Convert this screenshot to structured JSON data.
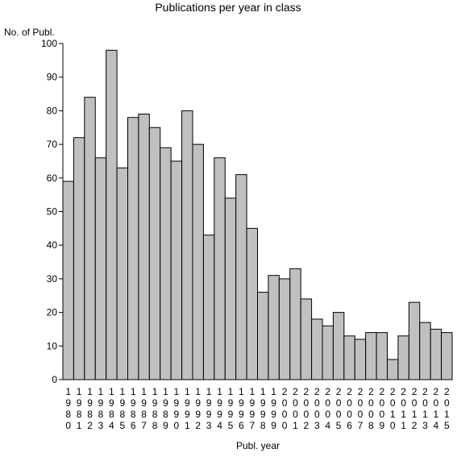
{
  "chart_data": {
    "type": "bar",
    "title": "Publications per year in class",
    "xlabel": "Publ. year",
    "ylabel": "No. of Publ.",
    "ylim": [
      0,
      100
    ],
    "yticks": [
      0,
      10,
      20,
      30,
      40,
      50,
      60,
      70,
      80,
      90,
      100
    ],
    "grid": false,
    "bar_color": "#c0c0c0",
    "edge_color": "#000000",
    "categories": [
      "1980",
      "1981",
      "1982",
      "1983",
      "1984",
      "1985",
      "1986",
      "1987",
      "1988",
      "1989",
      "1990",
      "1991",
      "1992",
      "1993",
      "1994",
      "1995",
      "1996",
      "1997",
      "1998",
      "1999",
      "2000",
      "2001",
      "2002",
      "2003",
      "2004",
      "2005",
      "2006",
      "2007",
      "2008",
      "2009",
      "2010",
      "2011",
      "2012",
      "2013",
      "2014",
      "2015"
    ],
    "values": [
      59,
      72,
      84,
      66,
      98,
      63,
      78,
      79,
      75,
      69,
      65,
      80,
      70,
      43,
      66,
      54,
      61,
      45,
      26,
      31,
      30,
      33,
      24,
      18,
      16,
      20,
      13,
      12,
      14,
      14,
      6,
      13,
      23,
      17,
      15,
      14
    ]
  }
}
